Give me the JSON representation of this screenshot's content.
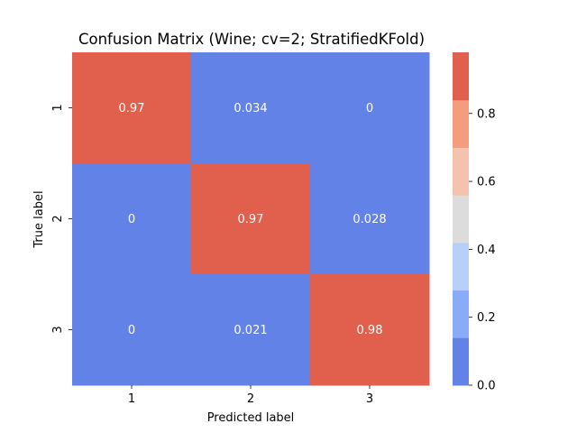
{
  "chart_data": {
    "type": "heatmap",
    "title": "Confusion Matrix (Wine; cv=2; StratifiedKFold)",
    "xlabel": "Predicted label",
    "ylabel": "True label",
    "x_categories": [
      "1",
      "2",
      "3"
    ],
    "y_categories": [
      "1",
      "2",
      "3"
    ],
    "values": [
      [
        0.966,
        0.034,
        0.0
      ],
      [
        0.0,
        0.972,
        0.028
      ],
      [
        0.0,
        0.021,
        0.979
      ]
    ],
    "cell_labels": [
      [
        "0.97",
        "0.034",
        "0"
      ],
      [
        "0",
        "0.97",
        "0.028"
      ],
      [
        "0",
        "0.021",
        "0.98"
      ]
    ],
    "colorbar": {
      "range": [
        0,
        0.98
      ],
      "bins": [
        {
          "from": 0.0,
          "to": 0.14,
          "color": "#6382e8"
        },
        {
          "from": 0.14,
          "to": 0.28,
          "color": "#8aabf8"
        },
        {
          "from": 0.28,
          "to": 0.42,
          "color": "#b8cff8"
        },
        {
          "from": 0.42,
          "to": 0.56,
          "color": "#dcdcdc"
        },
        {
          "from": 0.56,
          "to": 0.7,
          "color": "#f4c3ad"
        },
        {
          "from": 0.7,
          "to": 0.84,
          "color": "#f39d7e"
        },
        {
          "from": 0.84,
          "to": 0.98,
          "color": "#e0604d"
        }
      ],
      "ticks": [
        {
          "value": 0.0,
          "label": "0.0"
        },
        {
          "value": 0.2,
          "label": "0.2"
        },
        {
          "value": 0.4,
          "label": "0.4"
        },
        {
          "value": 0.6,
          "label": "0.6"
        },
        {
          "value": 0.8,
          "label": "0.8"
        }
      ]
    }
  }
}
